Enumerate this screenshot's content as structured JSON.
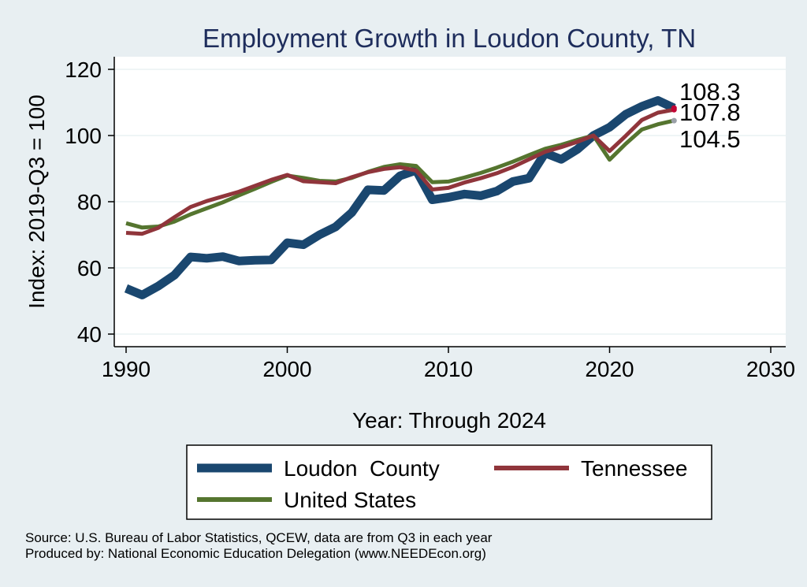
{
  "chart_data": {
    "type": "line",
    "title": "Employment Growth in Loudon County, TN",
    "xlabel": "Year: Through 2024",
    "ylabel": "Index: 2019-Q3 = 100",
    "xlim": [
      1990,
      2030
    ],
    "ylim": [
      40,
      120
    ],
    "xticks": [
      "1990",
      "2000",
      "2010",
      "2020",
      "2030"
    ],
    "yticks": [
      "40",
      "60",
      "80",
      "100",
      "120"
    ],
    "grid": true,
    "legend_position": "bottom",
    "x": [
      1990,
      1991,
      1992,
      1993,
      1994,
      1995,
      1996,
      1997,
      1998,
      1999,
      2000,
      2001,
      2002,
      2003,
      2004,
      2005,
      2006,
      2007,
      2008,
      2009,
      2010,
      2011,
      2012,
      2013,
      2014,
      2015,
      2016,
      2017,
      2018,
      2019,
      2020,
      2021,
      2022,
      2023,
      2024
    ],
    "series": [
      {
        "name": "Loudon  County",
        "color": "#1a476f",
        "values": [
          53.8,
          51.8,
          54.5,
          57.8,
          63.3,
          62.9,
          63.4,
          62.1,
          62.3,
          62.4,
          67.6,
          67.0,
          70.0,
          72.4,
          76.7,
          83.6,
          83.4,
          87.8,
          89.5,
          80.6,
          81.3,
          82.3,
          81.8,
          83.2,
          86.1,
          87.1,
          94.7,
          92.8,
          95.8,
          100.0,
          102.5,
          106.4,
          108.8,
          110.6,
          108.3
        ],
        "end_label": "108.3"
      },
      {
        "name": "Tennessee",
        "color": "#90353b",
        "values": [
          70.6,
          70.3,
          72.1,
          75.3,
          78.4,
          80.2,
          81.6,
          83.0,
          84.8,
          86.6,
          88.1,
          86.2,
          85.9,
          85.6,
          87.4,
          88.9,
          89.9,
          90.4,
          89.4,
          83.7,
          84.2,
          85.8,
          87.1,
          88.6,
          90.5,
          92.8,
          95.1,
          96.5,
          98.1,
          100.0,
          95.3,
          99.9,
          104.7,
          106.9,
          107.8
        ],
        "end_label": "107.8"
      },
      {
        "name": "United States",
        "color": "#55752f",
        "values": [
          73.5,
          72.2,
          72.5,
          74.0,
          76.2,
          78.0,
          79.8,
          81.9,
          83.9,
          86.0,
          87.9,
          87.2,
          86.3,
          86.1,
          87.2,
          89.0,
          90.5,
          91.3,
          90.8,
          85.9,
          86.1,
          87.3,
          88.7,
          90.3,
          92.1,
          94.1,
          96.0,
          97.2,
          98.7,
          100.0,
          92.7,
          97.5,
          101.8,
          103.4,
          104.5
        ],
        "end_label": "104.5"
      }
    ]
  },
  "source_line_1": "Source: U.S. Bureau of Labor Statistics, QCEW, data are from Q3 in each year",
  "source_line_2": "Produced by: National Economic Education Delegation (www.NEEDEcon.org)"
}
